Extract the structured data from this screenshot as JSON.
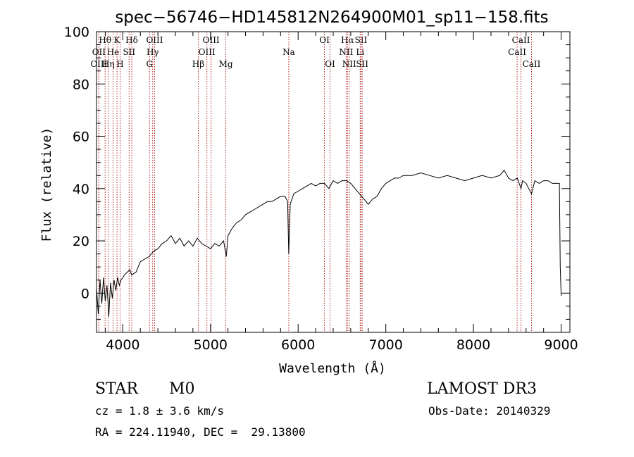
{
  "chart_data": {
    "type": "line",
    "title": "spec−56746−HD145812N264900M01_sp11−158.fits",
    "xlabel": "Wavelength (Å)",
    "ylabel": "Flux (relative)",
    "xlim": [
      3700,
      9100
    ],
    "ylim": [
      -15,
      100
    ],
    "xticks": [
      4000,
      5000,
      6000,
      7000,
      8000,
      9000
    ],
    "yticks": [
      0,
      20,
      40,
      60,
      80,
      100
    ],
    "grid": false,
    "series": [
      {
        "name": "flux",
        "x": [
          3700,
          3720,
          3740,
          3760,
          3780,
          3800,
          3820,
          3840,
          3860,
          3880,
          3900,
          3920,
          3940,
          3960,
          3980,
          4000,
          4020,
          4050,
          4080,
          4100,
          4150,
          4200,
          4250,
          4300,
          4350,
          4400,
          4450,
          4500,
          4550,
          4600,
          4650,
          4700,
          4750,
          4800,
          4850,
          4900,
          4950,
          5000,
          5050,
          5100,
          5150,
          5180,
          5200,
          5250,
          5300,
          5350,
          5400,
          5450,
          5500,
          5550,
          5600,
          5650,
          5700,
          5750,
          5800,
          5850,
          5880,
          5893,
          5910,
          5950,
          6000,
          6050,
          6100,
          6150,
          6200,
          6250,
          6300,
          6350,
          6400,
          6450,
          6500,
          6550,
          6600,
          6650,
          6700,
          6750,
          6800,
          6850,
          6900,
          6950,
          7000,
          7050,
          7100,
          7150,
          7200,
          7300,
          7400,
          7500,
          7600,
          7700,
          7800,
          7900,
          8000,
          8100,
          8200,
          8300,
          8350,
          8400,
          8450,
          8500,
          8542,
          8560,
          8600,
          8662,
          8700,
          8750,
          8800,
          8850,
          8900,
          8950,
          8980,
          8990,
          9000
        ],
        "y": [
          2,
          -8,
          5,
          -4,
          6,
          -3,
          3,
          -9,
          4,
          -2,
          5,
          1,
          6,
          3,
          5,
          6,
          7,
          8,
          9,
          7,
          8,
          12,
          13,
          14,
          16,
          17,
          19,
          20,
          22,
          19,
          21,
          18,
          20,
          18,
          21,
          19,
          18,
          17,
          19,
          18,
          20,
          14,
          22,
          25,
          27,
          28,
          30,
          31,
          32,
          33,
          34,
          35,
          35,
          36,
          37,
          37,
          35,
          15,
          34,
          38,
          39,
          40,
          41,
          42,
          41,
          42,
          42,
          40,
          43,
          42,
          43,
          43,
          42,
          40,
          38,
          36,
          34,
          36,
          37,
          40,
          42,
          43,
          44,
          44,
          45,
          45,
          46,
          45,
          44,
          45,
          44,
          43,
          44,
          45,
          44,
          45,
          47,
          44,
          43,
          44,
          40,
          43,
          42,
          38,
          43,
          42,
          43,
          43,
          42,
          42,
          42,
          10,
          -1
        ]
      }
    ],
    "lines": [
      {
        "name": "Hθ",
        "x": 3798,
        "row": 0
      },
      {
        "name": "OII",
        "x": 3727,
        "row": 1
      },
      {
        "name": "OIII",
        "x": 3727,
        "row": 2
      },
      {
        "name": "He",
        "x": 3889,
        "row": 1
      },
      {
        "name": "Hη",
        "x": 3835,
        "row": 2
      },
      {
        "name": "K",
        "x": 3934,
        "row": 0
      },
      {
        "name": "H",
        "x": 3969,
        "row": 2
      },
      {
        "name": "Hδ",
        "x": 4102,
        "row": 0
      },
      {
        "name": "SII",
        "x": 4072,
        "row": 1
      },
      {
        "name": "OIII",
        "x": 4363,
        "row": 0
      },
      {
        "name": "Hγ",
        "x": 4341,
        "row": 1
      },
      {
        "name": "G",
        "x": 4305,
        "row": 2
      },
      {
        "name": "Hβ",
        "x": 4861,
        "row": 2
      },
      {
        "name": "OIII",
        "x": 4959,
        "row": 1
      },
      {
        "name": "OIII",
        "x": 5007,
        "row": 0
      },
      {
        "name": "Mg",
        "x": 5175,
        "row": 2
      },
      {
        "name": "Na",
        "x": 5893,
        "row": 1
      },
      {
        "name": "OI",
        "x": 6300,
        "row": 0
      },
      {
        "name": "OI",
        "x": 6364,
        "row": 2
      },
      {
        "name": "Hα",
        "x": 6563,
        "row": 0
      },
      {
        "name": "NII",
        "x": 6548,
        "row": 1
      },
      {
        "name": "NII",
        "x": 6583,
        "row": 2
      },
      {
        "name": "SII",
        "x": 6717,
        "row": 0
      },
      {
        "name": "Li",
        "x": 6708,
        "row": 1
      },
      {
        "name": "SII",
        "x": 6731,
        "row": 2
      },
      {
        "name": "CaII",
        "x": 8542,
        "row": 0
      },
      {
        "name": "CaII",
        "x": 8498,
        "row": 1
      },
      {
        "name": "CaII",
        "x": 8662,
        "row": 2
      }
    ]
  },
  "info": {
    "class": "STAR",
    "subclass": "M0",
    "survey": "LAMOST DR3",
    "cz": "cz = 1.8 ± 3.6 km/s",
    "obsdate": "Obs-Date: 20140329",
    "coords": "RA = 224.11940, DEC =  29.13800"
  }
}
